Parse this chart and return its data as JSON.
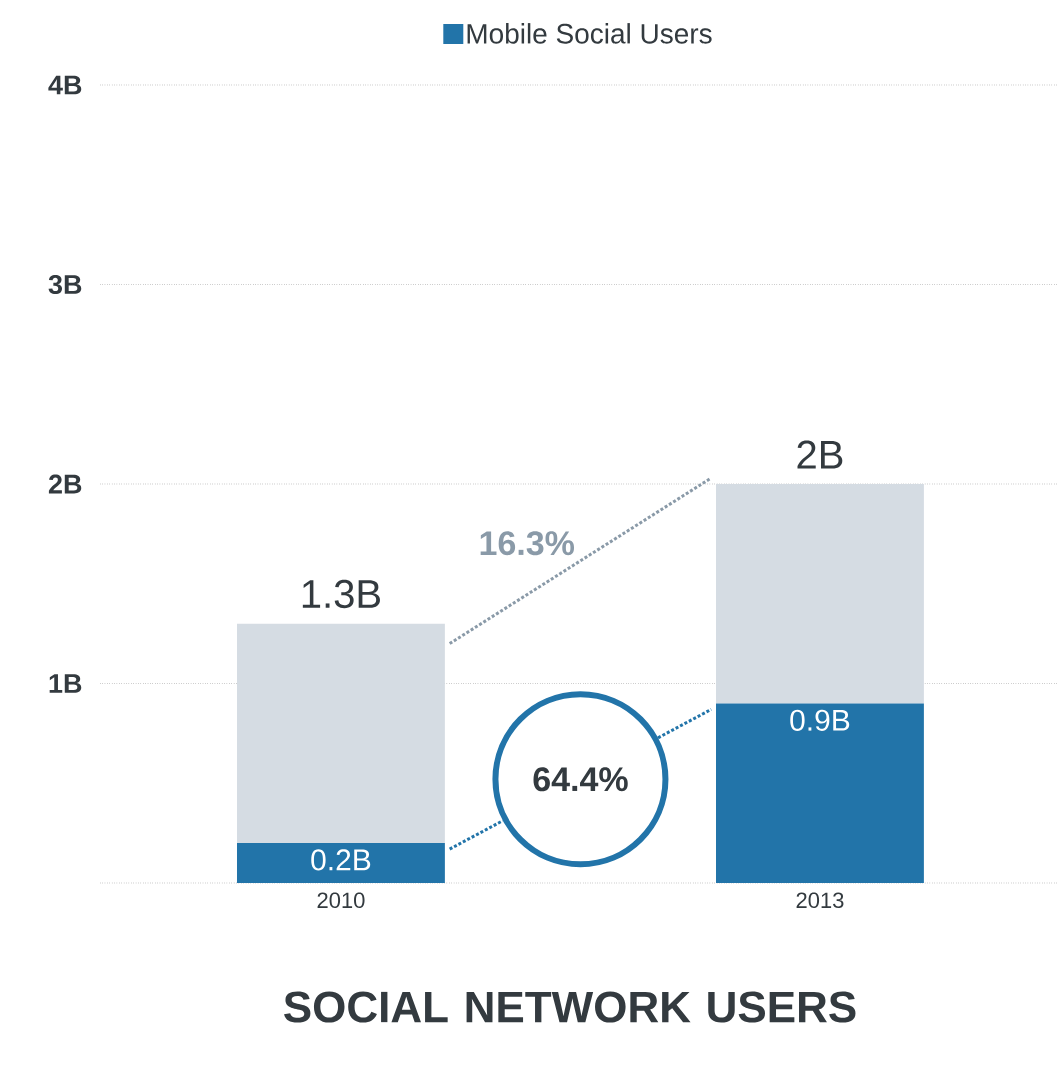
{
  "chart_data": {
    "type": "bar",
    "title": "SOCIAL NETWORK USERS",
    "stacked": true,
    "categories": [
      "2010",
      "2013"
    ],
    "series": [
      {
        "name": "Mobile Social Users",
        "color": "#2274a9",
        "values": [
          0.2,
          0.9
        ],
        "value_labels": [
          "0.2B",
          "0.9B"
        ]
      },
      {
        "color": "#d5dce3",
        "values": [
          1.1,
          1.1
        ]
      }
    ],
    "totals": [
      "1.3B",
      "2B"
    ],
    "annotations": [
      "16.3%",
      "64.4%"
    ],
    "ylim": [
      0,
      4
    ],
    "yticks": [
      {
        "value": 0,
        "label": null
      },
      {
        "value": 1,
        "label": "1B"
      },
      {
        "value": 2,
        "label": "2B"
      },
      {
        "value": 3,
        "label": "3B"
      },
      {
        "value": 4,
        "label": "4B"
      }
    ],
    "grid": "y",
    "legend": "top"
  }
}
